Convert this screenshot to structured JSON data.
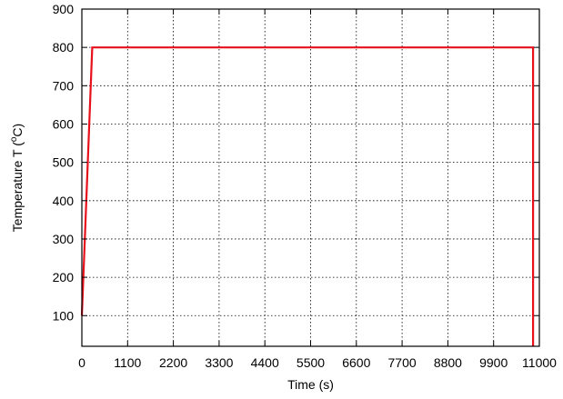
{
  "chart_data": {
    "type": "line",
    "xlabel": "Time (s)",
    "ylabel_prefix": "Temperature T (",
    "ylabel_superscript": "o",
    "ylabel_suffix": "C)",
    "xlim": [
      0,
      11000
    ],
    "ylim": [
      20,
      900
    ],
    "xticks": [
      0,
      1100,
      2200,
      3300,
      4400,
      5500,
      6600,
      7700,
      8800,
      9900,
      11000
    ],
    "yticks": [
      100,
      200,
      300,
      400,
      500,
      600,
      700,
      800,
      900
    ],
    "grid": true,
    "series": [
      {
        "color": "#e8101a",
        "x": [
          0,
          250,
          10850,
          10850
        ],
        "y": [
          100,
          800,
          800,
          20
        ]
      }
    ]
  }
}
